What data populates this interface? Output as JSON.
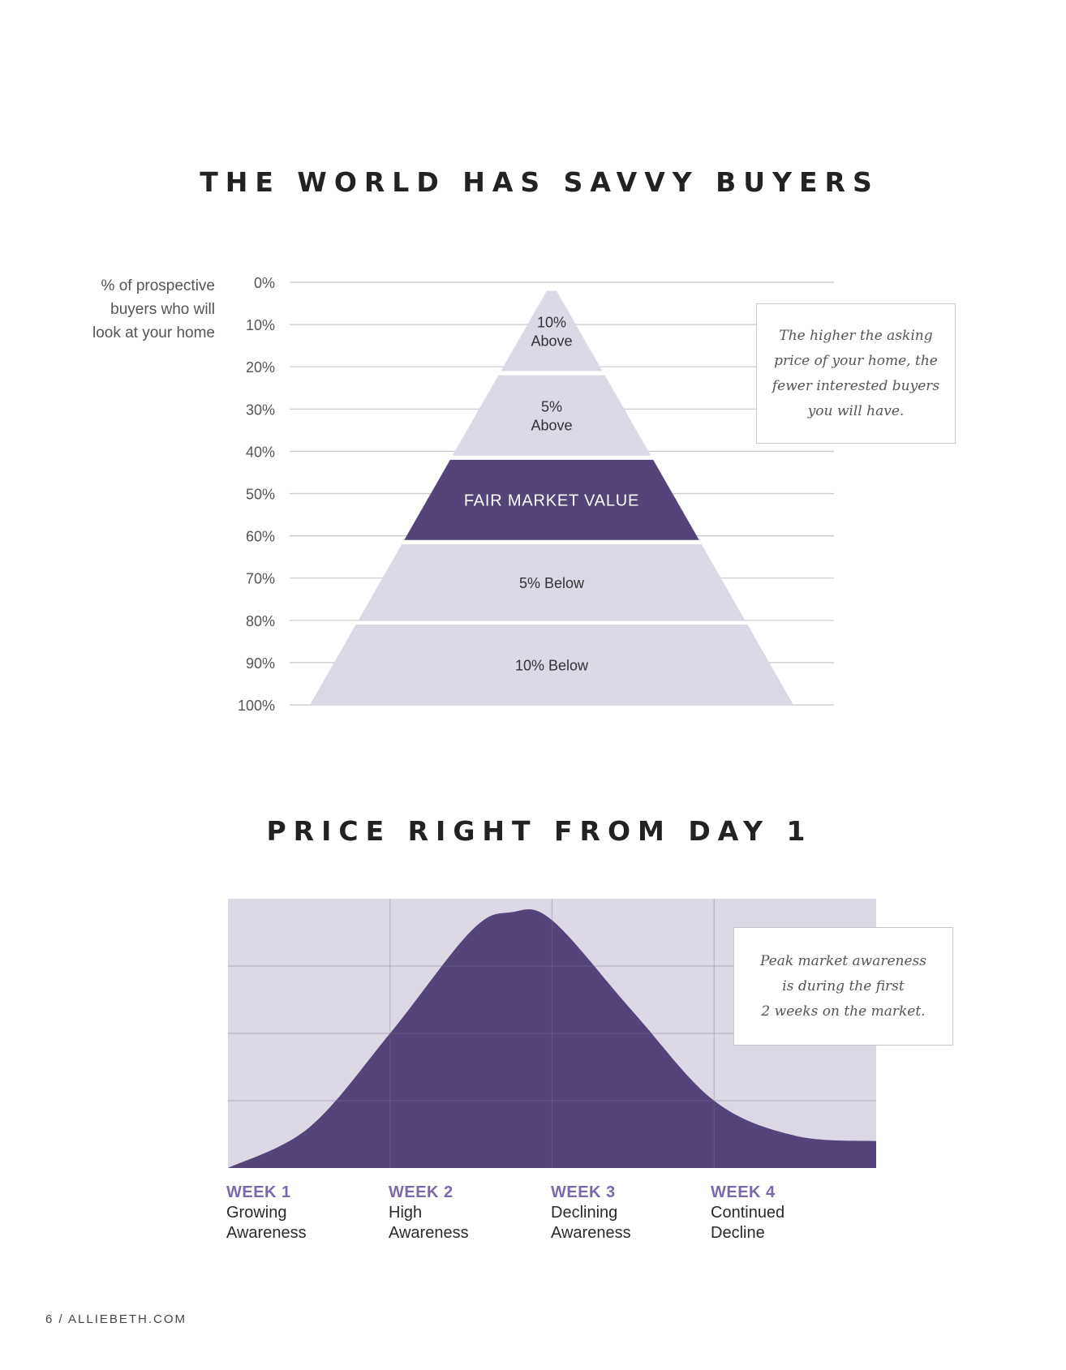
{
  "title1": "THE WORLD HAS SAVVY BUYERS",
  "title2": "PRICE RIGHT FROM DAY 1",
  "pyramid_ylabel": [
    "% of prospective",
    "buyers who will",
    "look at your home"
  ],
  "note1": [
    "The higher the asking",
    "price of your home, the",
    "fewer interested buyers",
    "you will have."
  ],
  "note2": [
    "Peak market awareness",
    "is during the first",
    "2 weeks on the market."
  ],
  "footer": "6 / ALLIEBETH.COM",
  "colors": {
    "accent": "#54447a",
    "light": "#dcd8e6",
    "week_label": "#7b68ab",
    "grid": "#c9c9c9"
  },
  "chart_data": [
    {
      "type": "pyramid",
      "yticks": [
        "0%",
        "10%",
        "20%",
        "30%",
        "40%",
        "50%",
        "60%",
        "70%",
        "80%",
        "90%",
        "100%"
      ],
      "ylim": [
        0,
        100
      ],
      "tiers": [
        {
          "lines": [
            "10%",
            "Above"
          ],
          "y_start": 2,
          "y_end": 21,
          "highlight": false
        },
        {
          "lines": [
            "5%",
            "Above"
          ],
          "y_start": 22,
          "y_end": 41,
          "highlight": false
        },
        {
          "lines": [
            "FAIR MARKET VALUE"
          ],
          "y_start": 42,
          "y_end": 61,
          "highlight": true
        },
        {
          "lines": [
            "5% Below"
          ],
          "y_start": 62,
          "y_end": 80,
          "highlight": false
        },
        {
          "lines": [
            "10% Below"
          ],
          "y_start": 81,
          "y_end": 100,
          "highlight": false
        }
      ]
    },
    {
      "type": "area",
      "x": [
        0,
        0.5,
        1,
        1.5,
        1.75,
        2,
        2.5,
        3,
        3.5,
        4
      ],
      "values": [
        0,
        15,
        50,
        88,
        95,
        92,
        58,
        25,
        12,
        10
      ],
      "ylim": [
        0,
        100
      ],
      "weeks": [
        {
          "label": "WEEK 1",
          "desc": [
            "Growing",
            "Awareness"
          ]
        },
        {
          "label": "WEEK 2",
          "desc": [
            "High",
            "Awareness"
          ]
        },
        {
          "label": "WEEK 3",
          "desc": [
            "Declining",
            "Awareness"
          ]
        },
        {
          "label": "WEEK 4",
          "desc": [
            "Continued",
            "Decline"
          ]
        }
      ]
    }
  ]
}
